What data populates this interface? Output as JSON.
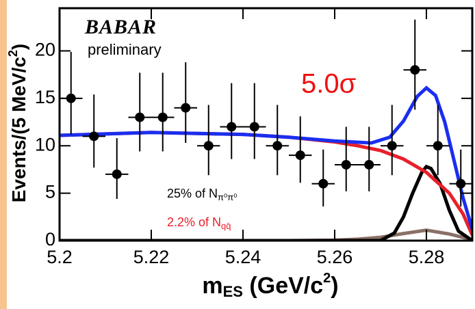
{
  "chart_data": {
    "type": "scatter",
    "experiment": "BABAR",
    "status": "preliminary",
    "significance": "5.0σ",
    "xlabel": {
      "text": "m",
      "sub": "ES",
      "tail": " (GeV/c",
      "sup": "2",
      "end": ")"
    },
    "ylabel": {
      "text": "Events/(5 MeV/c",
      "sup": "2",
      "end": ")"
    },
    "annotations": [
      {
        "text": "25% of N",
        "sub": "π⁰π⁰",
        "color": "#000000"
      },
      {
        "text": "2.2% of N",
        "sub": "qq̄",
        "color": "#e8202a"
      }
    ],
    "xlim": [
      5.2,
      5.29
    ],
    "ylim": [
      0,
      24.5
    ],
    "xticks": [
      5.2,
      5.22,
      5.24,
      5.26,
      5.28
    ],
    "yticks": [
      0,
      5,
      10,
      15,
      20
    ],
    "series": [
      {
        "color": "#000000",
        "xerr": 0.0025,
        "x": [
          5.2025,
          5.2075,
          5.2125,
          5.2175,
          5.2225,
          5.2275,
          5.2325,
          5.2375,
          5.2425,
          5.2475,
          5.2525,
          5.2575,
          5.2625,
          5.2675,
          5.2725,
          5.2775,
          5.2825,
          5.2875
        ],
        "values": [
          15,
          11,
          7,
          13,
          13,
          14,
          10,
          12,
          12,
          10,
          9,
          6,
          8,
          8,
          10,
          18,
          10,
          6
        ],
        "yerr_low": [
          3.8,
          3.3,
          2.6,
          3.6,
          3.6,
          3.7,
          3.1,
          3.4,
          3.4,
          3.1,
          2.9,
          2.4,
          2.8,
          2.8,
          3.1,
          4.2,
          3.1,
          2.4
        ],
        "yerr_high": [
          4.9,
          4.4,
          3.8,
          4.7,
          4.7,
          4.8,
          4.3,
          4.6,
          4.6,
          4.3,
          4.1,
          3.6,
          4.0,
          4.0,
          4.3,
          5.3,
          4.3,
          3.6
        ]
      }
    ],
    "curves": [
      {
        "color": "#8a7068",
        "x": [
          5.2,
          5.25,
          5.26,
          5.265,
          5.27,
          5.275,
          5.28,
          5.285,
          5.29
        ],
        "y": [
          0,
          0,
          0.05,
          0.15,
          0.35,
          0.75,
          1.1,
          0.7,
          0.1
        ]
      },
      {
        "color": "#000000",
        "x": [
          5.2,
          5.27,
          5.273,
          5.275,
          5.277,
          5.279,
          5.28,
          5.281,
          5.283,
          5.285,
          5.287,
          5.29
        ],
        "y": [
          0,
          0,
          0.8,
          2.5,
          5,
          7.2,
          7.8,
          7.6,
          6,
          3.2,
          1,
          0
        ]
      },
      {
        "color": "#e8202a",
        "x": [
          5.2,
          5.22,
          5.24,
          5.25,
          5.26,
          5.265,
          5.27,
          5.275,
          5.28,
          5.285,
          5.288,
          5.29
        ],
        "y": [
          11.1,
          11.4,
          11.2,
          10.9,
          10.4,
          10,
          9.5,
          8.6,
          7.2,
          5,
          2.8,
          0.6
        ]
      },
      {
        "color": "#1a2ef0",
        "x": [
          5.2,
          5.22,
          5.24,
          5.25,
          5.26,
          5.268,
          5.272,
          5.275,
          5.278,
          5.28,
          5.282,
          5.284,
          5.286,
          5.288,
          5.29
        ],
        "y": [
          11.1,
          11.4,
          11.2,
          10.9,
          10.5,
          10.3,
          10.9,
          12.6,
          15.2,
          16.1,
          15.3,
          12.5,
          8.5,
          4.5,
          1.2
        ]
      }
    ]
  }
}
